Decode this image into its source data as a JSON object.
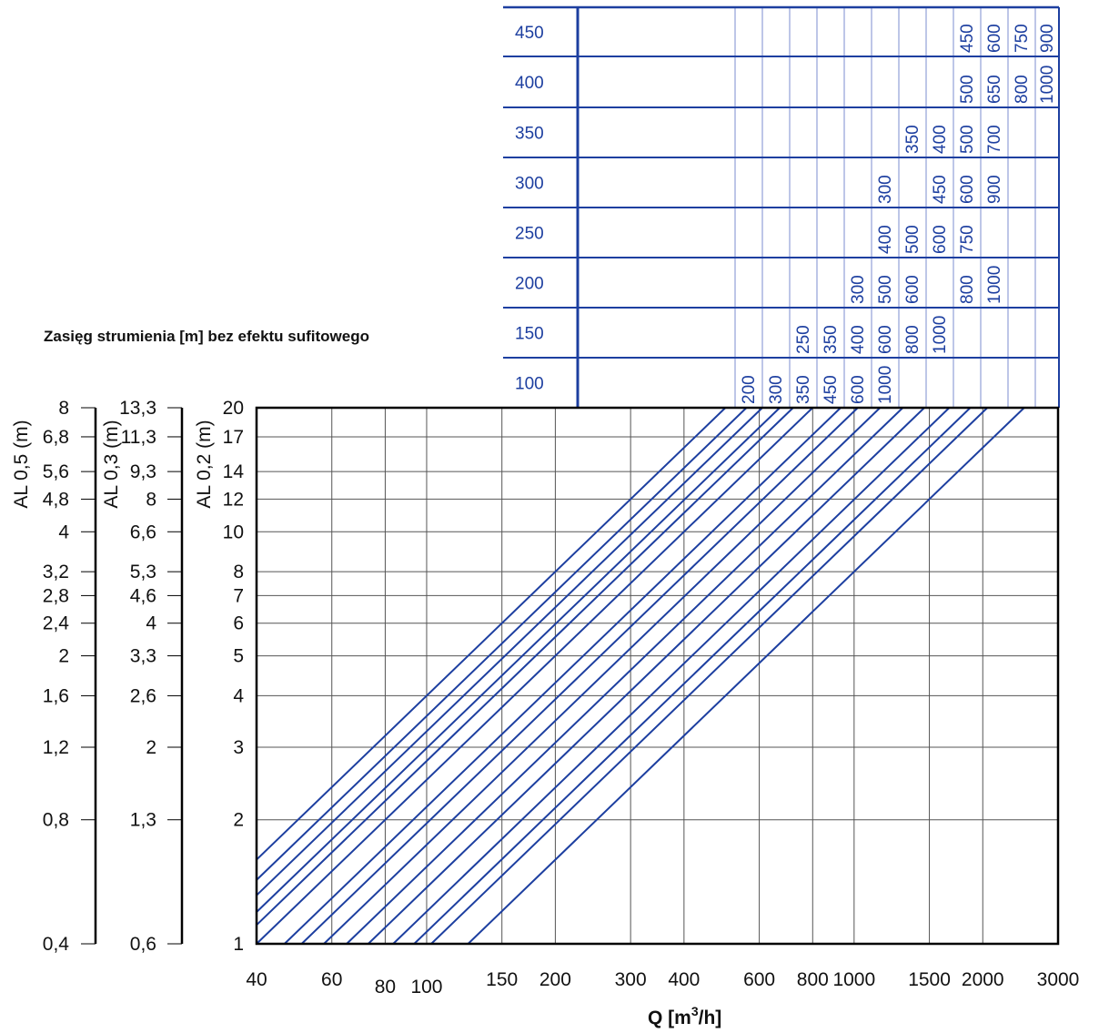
{
  "chart_data": {
    "type": "line",
    "title": "Zasięg strumienia [m] bez efektu sufitowego",
    "xlabel": "Q [m³/h]",
    "x_scale": "log",
    "xlim": [
      40,
      3000
    ],
    "x_ticks": [
      40,
      60,
      80,
      100,
      150,
      200,
      300,
      400,
      600,
      800,
      1000,
      1500,
      2000,
      3000
    ],
    "y_scale": "log",
    "ylim": [
      1,
      20
    ],
    "grid": true,
    "y_axes": [
      {
        "label": "AL 0,5 (m)",
        "ticks": [
          {
            "v": 20,
            "t": "8"
          },
          {
            "v": 17,
            "t": "6,8"
          },
          {
            "v": 14,
            "t": "5,6"
          },
          {
            "v": 12,
            "t": "4,8"
          },
          {
            "v": 10,
            "t": "4"
          },
          {
            "v": 8,
            "t": "3,2"
          },
          {
            "v": 7,
            "t": "2,8"
          },
          {
            "v": 6,
            "t": "2,4"
          },
          {
            "v": 5,
            "t": "2"
          },
          {
            "v": 4,
            "t": "1,6"
          },
          {
            "v": 3,
            "t": "1,2"
          },
          {
            "v": 2,
            "t": "0,8"
          },
          {
            "v": 1,
            "t": "0,4"
          }
        ]
      },
      {
        "label": "AL 0,3 (m)",
        "ticks": [
          {
            "v": 20,
            "t": "13,3"
          },
          {
            "v": 17,
            "t": "11,3"
          },
          {
            "v": 14,
            "t": "9,3"
          },
          {
            "v": 12,
            "t": "8"
          },
          {
            "v": 10,
            "t": "6,6"
          },
          {
            "v": 8,
            "t": "5,3"
          },
          {
            "v": 7,
            "t": "4,6"
          },
          {
            "v": 6,
            "t": "4"
          },
          {
            "v": 5,
            "t": "3,3"
          },
          {
            "v": 4,
            "t": "2,6"
          },
          {
            "v": 3,
            "t": "2"
          },
          {
            "v": 2,
            "t": "1,3"
          },
          {
            "v": 1,
            "t": "0,6"
          }
        ]
      },
      {
        "label": "AL 0,2 (m)",
        "ticks": [
          {
            "v": 20,
            "t": "20"
          },
          {
            "v": 17,
            "t": "17"
          },
          {
            "v": 14,
            "t": "14"
          },
          {
            "v": 12,
            "t": "12"
          },
          {
            "v": 10,
            "t": "10"
          },
          {
            "v": 8,
            "t": "8"
          },
          {
            "v": 7,
            "t": "7"
          },
          {
            "v": 6,
            "t": "6"
          },
          {
            "v": 5,
            "t": "5"
          },
          {
            "v": 4,
            "t": "4"
          },
          {
            "v": 3,
            "t": "3"
          },
          {
            "v": 2,
            "t": "2"
          },
          {
            "v": 1,
            "t": "1"
          }
        ]
      }
    ],
    "series_q_at_top": [
      500,
      560,
      610,
      670,
      720,
      800,
      930,
      1020,
      1150,
      1300,
      1460,
      1670,
      1870,
      2050,
      2500
    ],
    "series_slope": 1,
    "series_color": "#1d3fa0",
    "grid_color": "#555555",
    "table": {
      "rows": [
        {
          "size": "450",
          "values": [
            "450",
            "600",
            "750",
            "900"
          ]
        },
        {
          "size": "400",
          "values": [
            "500",
            "650",
            "800",
            "1000"
          ]
        },
        {
          "size": "350",
          "values": [
            "350",
            "400",
            "500",
            "700"
          ]
        },
        {
          "size": "300",
          "values": [
            "300",
            "450",
            "600",
            "900"
          ]
        },
        {
          "size": "250",
          "values": [
            "400",
            "500",
            "600",
            "750"
          ]
        },
        {
          "size": "200",
          "values": [
            "300",
            "500",
            "600",
            "800",
            "1000"
          ]
        },
        {
          "size": "150",
          "values": [
            "250",
            "350",
            "400",
            "600",
            "800",
            "1000"
          ]
        },
        {
          "size": "100",
          "values": [
            "200",
            "300",
            "350",
            "450",
            "600",
            "1000"
          ]
        }
      ]
    }
  }
}
